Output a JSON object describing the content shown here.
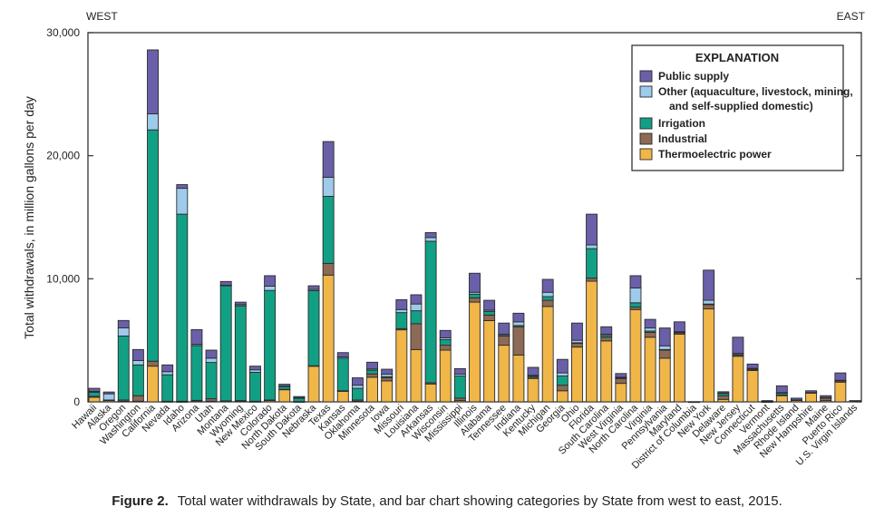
{
  "chart_data": {
    "type": "bar",
    "stacked": true,
    "title": "",
    "ylabel": "Total withdrawals, in million gallons per day",
    "xlabel": "",
    "ylim": [
      0,
      30000
    ],
    "yticks": [
      0,
      10000,
      20000,
      30000
    ],
    "ytick_labels": [
      "0",
      "10,000",
      "20,000",
      "30,000"
    ],
    "grid": false,
    "annotations": {
      "left": "WEST",
      "right": "EAST"
    },
    "legend": {
      "title": "EXPLANATION",
      "placement": "top-right",
      "entries": [
        {
          "key": "public",
          "label": [
            "Public supply"
          ]
        },
        {
          "key": "other",
          "label": [
            "Other (aquaculture, livestock, mining,",
            "and self-supplied domestic)"
          ]
        },
        {
          "key": "irrigation",
          "label": [
            "Irrigation"
          ]
        },
        {
          "key": "industrial",
          "label": [
            "Industrial"
          ]
        },
        {
          "key": "thermo",
          "label": [
            "Thermoelectric power"
          ]
        }
      ]
    },
    "categories": [
      "Hawaii",
      "Alaska",
      "Oregon",
      "Washington",
      "California",
      "Nevada",
      "Idaho",
      "Arizona",
      "Utah",
      "Montana",
      "Wyoming",
      "New Mexico",
      "Colorado",
      "North Dakota",
      "South Dakota",
      "Nebraska",
      "Texas",
      "Kansas",
      "Oklahoma",
      "Minnesota",
      "Iowa",
      "Missouri",
      "Louisiana",
      "Arkansas",
      "Wisconsin",
      "Mississippi",
      "Illinois",
      "Alabama",
      "Tennessee",
      "Indiana",
      "Kentucky",
      "Michigan",
      "Georgia",
      "Ohio",
      "Florida",
      "South Carolina",
      "West Virginia",
      "North Carolina",
      "Virginia",
      "Pennsylvania",
      "Maryland",
      "District of Columbia",
      "New York",
      "Delaware",
      "New Jersey",
      "Connecticut",
      "Vermont",
      "Massachusetts",
      "Rhode Island",
      "New Hampshire",
      "Maine",
      "Puerto Rico",
      "U.S. Virgin Islands"
    ],
    "series": [
      {
        "key": "thermo",
        "name": "Thermoelectric power",
        "color": "#f0b648",
        "values": [
          370,
          100,
          50,
          50,
          2900,
          20,
          10,
          80,
          50,
          50,
          50,
          20,
          100,
          1000,
          10,
          2900,
          10300,
          850,
          50,
          2000,
          1700,
          5850,
          4250,
          1450,
          4200,
          100,
          8100,
          6600,
          4600,
          3800,
          1900,
          7750,
          900,
          4450,
          9800,
          4950,
          1500,
          7500,
          5250,
          3550,
          5500,
          0,
          7550,
          200,
          3700,
          2550,
          0,
          500,
          120,
          700,
          100,
          1600,
          70
        ]
      },
      {
        "key": "industrial",
        "name": "Industrial",
        "color": "#8d6a55",
        "values": [
          70,
          50,
          100,
          450,
          400,
          30,
          40,
          40,
          200,
          30,
          50,
          30,
          50,
          20,
          10,
          30,
          950,
          50,
          100,
          270,
          250,
          100,
          2100,
          100,
          400,
          200,
          350,
          450,
          750,
          2300,
          100,
          500,
          450,
          300,
          250,
          300,
          400,
          200,
          400,
          650,
          100,
          0,
          350,
          300,
          100,
          100,
          20,
          50,
          30,
          50,
          250,
          100,
          0
        ]
      },
      {
        "key": "irrigation",
        "name": "Irrigation",
        "color": "#12a085",
        "values": [
          340,
          0,
          5200,
          2500,
          18800,
          2150,
          15200,
          4450,
          2950,
          9350,
          7700,
          2350,
          8900,
          250,
          300,
          6100,
          5450,
          2650,
          950,
          300,
          100,
          1300,
          1050,
          11500,
          450,
          1800,
          300,
          300,
          50,
          100,
          100,
          300,
          750,
          50,
          2400,
          150,
          50,
          350,
          100,
          50,
          50,
          0,
          50,
          200,
          50,
          20,
          30,
          150,
          0,
          0,
          0,
          50,
          0
        ]
      },
      {
        "key": "other",
        "name": "Other (aquaculture, livestock, mining, and self-supplied domestic)",
        "color": "#9ecbec",
        "values": [
          70,
          500,
          660,
          350,
          1300,
          250,
          2100,
          100,
          350,
          50,
          100,
          200,
          350,
          10,
          10,
          100,
          1550,
          100,
          250,
          100,
          200,
          250,
          550,
          300,
          150,
          150,
          150,
          100,
          100,
          300,
          50,
          350,
          250,
          200,
          300,
          100,
          50,
          1200,
          250,
          300,
          50,
          0,
          300,
          20,
          100,
          50,
          0,
          50,
          0,
          0,
          0,
          0,
          0
        ]
      },
      {
        "key": "public",
        "name": "Public supply",
        "color": "#6a60a9",
        "values": [
          250,
          150,
          600,
          900,
          5200,
          550,
          300,
          1200,
          650,
          300,
          200,
          300,
          850,
          150,
          100,
          300,
          2900,
          350,
          600,
          550,
          400,
          800,
          750,
          400,
          600,
          450,
          1550,
          800,
          900,
          700,
          650,
          1050,
          1100,
          1400,
          2500,
          600,
          300,
          1000,
          700,
          1450,
          800,
          10,
          2450,
          100,
          1300,
          350,
          50,
          550,
          150,
          150,
          150,
          600,
          30
        ]
      }
    ]
  },
  "caption": {
    "label": "Figure 2.",
    "text": "Total water withdrawals by State, and bar chart showing categories by State from west to east, 2015."
  }
}
